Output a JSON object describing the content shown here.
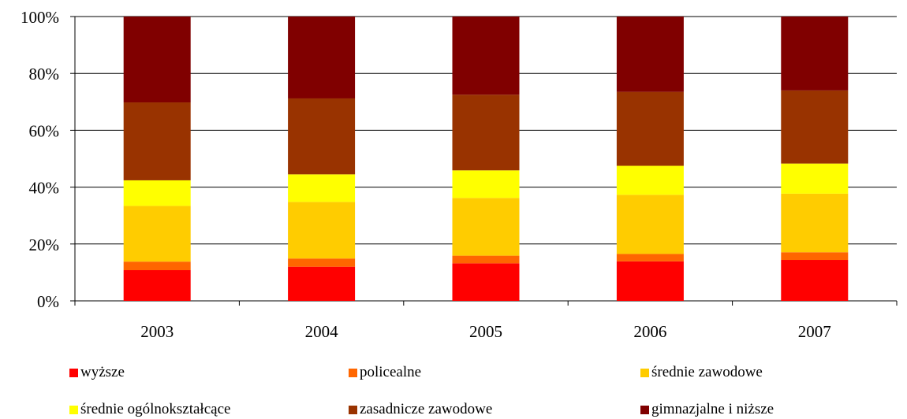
{
  "chart_data": {
    "type": "bar",
    "stacked": true,
    "percent_stacked": true,
    "categories": [
      "2003",
      "2004",
      "2005",
      "2006",
      "2007"
    ],
    "series": [
      {
        "name": "wyższe",
        "color": "#ff0000",
        "values": [
          10.8,
          12.0,
          13.2,
          13.9,
          14.4
        ]
      },
      {
        "name": "policealne",
        "color": "#ff6600",
        "values": [
          3.0,
          2.9,
          2.7,
          2.6,
          2.7
        ]
      },
      {
        "name": "średnie zawodowe",
        "color": "#ffcc00",
        "values": [
          19.6,
          19.9,
          20.3,
          20.8,
          20.6
        ]
      },
      {
        "name": "średnie ogólnokształcące",
        "color": "#ffff00",
        "values": [
          9.0,
          9.7,
          9.7,
          10.2,
          10.6
        ]
      },
      {
        "name": "zasadnicze zawodowe",
        "color": "#993300",
        "values": [
          27.4,
          26.7,
          26.6,
          26.0,
          25.7
        ]
      },
      {
        "name": "gimnazjalne i niższe",
        "color": "#800000",
        "values": [
          30.2,
          28.8,
          27.5,
          26.5,
          26.0
        ]
      }
    ],
    "y_ticks": [
      "0%",
      "20%",
      "40%",
      "60%",
      "80%",
      "100%"
    ],
    "ylim": [
      0,
      100
    ],
    "grid": true,
    "legend_position": "bottom",
    "title": "",
    "xlabel": "",
    "ylabel": ""
  }
}
